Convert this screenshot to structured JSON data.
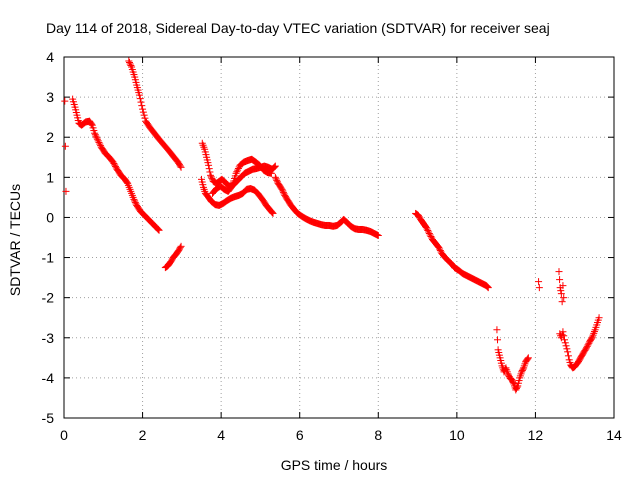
{
  "chart_data": {
    "type": "scatter",
    "title": "Day 114 of 2018, Sidereal Day-to-day VTEC variation (SDTVAR) for receiver seaj",
    "xlabel": "GPS time / hours",
    "ylabel": "SDTVAR / TECUs",
    "xlim": [
      0,
      14
    ],
    "ylim": [
      -5,
      4
    ],
    "xticks": [
      0,
      2,
      4,
      6,
      8,
      10,
      12,
      14
    ],
    "yticks": [
      -5,
      -4,
      -3,
      -2,
      -1,
      0,
      1,
      2,
      3,
      4
    ],
    "grid": true,
    "marker": "+",
    "marker_color": "#ff0000",
    "axis_color": "#000000",
    "grid_color": "#a0a0a0",
    "series": [
      {
        "name": "SDTVAR",
        "segments": [
          [
            [
              0.02,
              2.9
            ],
            [
              0.05,
              0.65
            ]
          ],
          [
            [
              0.22,
              2.95
            ],
            [
              0.28,
              2.75
            ],
            [
              0.33,
              2.55
            ],
            [
              0.38,
              2.35
            ],
            [
              0.45,
              2.3
            ],
            [
              0.55,
              2.38
            ],
            [
              0.65,
              2.4
            ],
            [
              0.72,
              2.3
            ],
            [
              0.78,
              2.1
            ],
            [
              0.85,
              1.95
            ],
            [
              0.95,
              1.75
            ],
            [
              1.05,
              1.6
            ],
            [
              1.15,
              1.5
            ],
            [
              1.25,
              1.38
            ],
            [
              1.35,
              1.2
            ],
            [
              1.45,
              1.05
            ],
            [
              1.55,
              0.95
            ],
            [
              1.62,
              0.85
            ],
            [
              1.7,
              0.65
            ],
            [
              1.78,
              0.45
            ],
            [
              1.85,
              0.3
            ],
            [
              1.95,
              0.15
            ],
            [
              2.05,
              0.05
            ],
            [
              2.15,
              -0.05
            ],
            [
              2.25,
              -0.15
            ],
            [
              2.35,
              -0.25
            ],
            [
              2.42,
              -0.32
            ]
          ],
          [
            [
              1.65,
              3.9
            ],
            [
              1.72,
              3.75
            ],
            [
              1.8,
              3.5
            ],
            [
              1.85,
              3.3
            ],
            [
              1.92,
              3.05
            ],
            [
              2.0,
              2.7
            ],
            [
              2.08,
              2.4
            ],
            [
              2.18,
              2.25
            ],
            [
              2.3,
              2.1
            ],
            [
              2.42,
              1.95
            ],
            [
              2.55,
              1.8
            ],
            [
              2.68,
              1.65
            ],
            [
              2.8,
              1.5
            ],
            [
              2.9,
              1.38
            ],
            [
              2.98,
              1.25
            ]
          ],
          [
            [
              2.58,
              -1.25
            ],
            [
              2.65,
              -1.2
            ],
            [
              2.72,
              -1.1
            ],
            [
              2.78,
              -1.0
            ],
            [
              2.85,
              -0.92
            ],
            [
              2.92,
              -0.82
            ],
            [
              2.98,
              -0.72
            ]
          ],
          [
            [
              3.5,
              0.95
            ],
            [
              3.55,
              0.75
            ],
            [
              3.6,
              0.6
            ],
            [
              3.68,
              0.5
            ],
            [
              3.75,
              0.4
            ],
            [
              3.85,
              0.32
            ],
            [
              3.95,
              0.3
            ],
            [
              4.05,
              0.35
            ],
            [
              4.15,
              0.42
            ],
            [
              4.25,
              0.48
            ],
            [
              4.35,
              0.52
            ],
            [
              4.45,
              0.55
            ],
            [
              4.55,
              0.6
            ],
            [
              4.65,
              0.7
            ],
            [
              4.75,
              0.72
            ],
            [
              4.85,
              0.68
            ],
            [
              4.95,
              0.58
            ],
            [
              5.05,
              0.45
            ],
            [
              5.15,
              0.3
            ],
            [
              5.25,
              0.18
            ],
            [
              5.32,
              0.1
            ]
          ],
          [
            [
              3.52,
              1.85
            ],
            [
              3.58,
              1.7
            ],
            [
              3.63,
              1.5
            ],
            [
              3.68,
              1.3
            ],
            [
              3.73,
              1.05
            ],
            [
              3.8,
              0.9
            ],
            [
              3.88,
              0.85
            ],
            [
              3.95,
              0.9
            ],
            [
              4.02,
              0.95
            ],
            [
              4.1,
              0.88
            ],
            [
              4.2,
              0.78
            ],
            [
              4.3,
              0.8
            ],
            [
              4.4,
              0.9
            ],
            [
              4.5,
              1.0
            ],
            [
              4.6,
              1.1
            ],
            [
              4.7,
              1.15
            ],
            [
              4.8,
              1.2
            ],
            [
              4.9,
              1.22
            ],
            [
              5.0,
              1.25
            ],
            [
              5.1,
              1.28
            ],
            [
              5.2,
              1.25
            ],
            [
              5.3,
              1.2
            ],
            [
              5.38,
              1.28
            ]
          ],
          [
            [
              3.78,
              0.6
            ],
            [
              3.88,
              0.72
            ],
            [
              3.98,
              0.78
            ],
            [
              4.08,
              0.7
            ],
            [
              4.18,
              0.65
            ],
            [
              4.28,
              0.78
            ],
            [
              4.38,
              1.1
            ],
            [
              4.48,
              1.3
            ],
            [
              4.58,
              1.38
            ],
            [
              4.68,
              1.42
            ],
            [
              4.78,
              1.45
            ],
            [
              4.88,
              1.38
            ],
            [
              4.98,
              1.3
            ],
            [
              5.08,
              1.18
            ],
            [
              5.18,
              1.12
            ],
            [
              5.28,
              1.1
            ]
          ],
          [
            [
              5.38,
              1.0
            ],
            [
              5.45,
              0.85
            ],
            [
              5.55,
              0.7
            ],
            [
              5.62,
              0.55
            ],
            [
              5.7,
              0.42
            ],
            [
              5.78,
              0.3
            ],
            [
              5.86,
              0.2
            ],
            [
              5.95,
              0.1
            ],
            [
              6.05,
              0.03
            ],
            [
              6.15,
              -0.03
            ],
            [
              6.25,
              -0.08
            ],
            [
              6.35,
              -0.12
            ],
            [
              6.45,
              -0.15
            ],
            [
              6.55,
              -0.18
            ],
            [
              6.65,
              -0.2
            ],
            [
              6.75,
              -0.2
            ],
            [
              6.85,
              -0.22
            ],
            [
              6.95,
              -0.2
            ],
            [
              7.05,
              -0.12
            ],
            [
              7.12,
              -0.05
            ],
            [
              7.2,
              -0.12
            ],
            [
              7.3,
              -0.22
            ],
            [
              7.4,
              -0.28
            ],
            [
              7.5,
              -0.3
            ],
            [
              7.6,
              -0.3
            ],
            [
              7.7,
              -0.32
            ],
            [
              7.8,
              -0.35
            ],
            [
              7.9,
              -0.4
            ],
            [
              8.0,
              -0.45
            ]
          ],
          [
            [
              8.95,
              0.1
            ],
            [
              9.02,
              0.05
            ],
            [
              9.08,
              -0.05
            ],
            [
              9.15,
              -0.15
            ],
            [
              9.22,
              -0.25
            ],
            [
              9.3,
              -0.4
            ],
            [
              9.38,
              -0.55
            ],
            [
              9.46,
              -0.65
            ],
            [
              9.54,
              -0.75
            ],
            [
              9.62,
              -0.9
            ],
            [
              9.7,
              -1.0
            ],
            [
              9.78,
              -1.08
            ],
            [
              9.86,
              -1.15
            ],
            [
              9.94,
              -1.25
            ],
            [
              10.05,
              -1.32
            ],
            [
              10.15,
              -1.4
            ],
            [
              10.25,
              -1.45
            ],
            [
              10.35,
              -1.5
            ],
            [
              10.45,
              -1.55
            ],
            [
              10.55,
              -1.6
            ],
            [
              10.65,
              -1.65
            ],
            [
              10.75,
              -1.7
            ],
            [
              10.8,
              -1.75
            ]
          ],
          [
            [
              11.02,
              -2.8
            ],
            [
              11.05,
              -3.3
            ],
            [
              11.1,
              -3.5
            ],
            [
              11.15,
              -3.7
            ],
            [
              11.2,
              -3.85
            ],
            [
              11.25,
              -3.75
            ],
            [
              11.3,
              -3.9
            ],
            [
              11.35,
              -4.0
            ],
            [
              11.4,
              -4.05
            ],
            [
              11.45,
              -4.15
            ],
            [
              11.5,
              -4.3
            ],
            [
              11.55,
              -4.2
            ],
            [
              11.6,
              -4.0
            ],
            [
              11.65,
              -3.85
            ],
            [
              11.7,
              -3.75
            ],
            [
              11.75,
              -3.6
            ],
            [
              11.82,
              -3.5
            ]
          ],
          [
            [
              12.08,
              -1.6
            ],
            [
              12.1,
              -1.75
            ]
          ],
          [
            [
              12.6,
              -1.35
            ],
            [
              12.63,
              -1.75
            ],
            [
              12.66,
              -1.9
            ],
            [
              12.68,
              -2.1
            ],
            [
              12.7,
              -1.7
            ],
            [
              12.72,
              -2.0
            ]
          ],
          [
            [
              12.62,
              -2.9
            ],
            [
              12.66,
              -3.0
            ],
            [
              12.7,
              -2.85
            ],
            [
              12.74,
              -3.05
            ],
            [
              12.78,
              -3.2
            ],
            [
              12.82,
              -3.35
            ],
            [
              12.86,
              -3.55
            ],
            [
              12.9,
              -3.68
            ],
            [
              12.95,
              -3.75
            ],
            [
              13.0,
              -3.72
            ],
            [
              13.08,
              -3.62
            ],
            [
              13.15,
              -3.5
            ],
            [
              13.22,
              -3.38
            ],
            [
              13.3,
              -3.25
            ],
            [
              13.38,
              -3.1
            ],
            [
              13.45,
              -2.98
            ],
            [
              13.52,
              -2.8
            ],
            [
              13.58,
              -2.62
            ],
            [
              13.62,
              -2.5
            ]
          ]
        ]
      }
    ]
  }
}
